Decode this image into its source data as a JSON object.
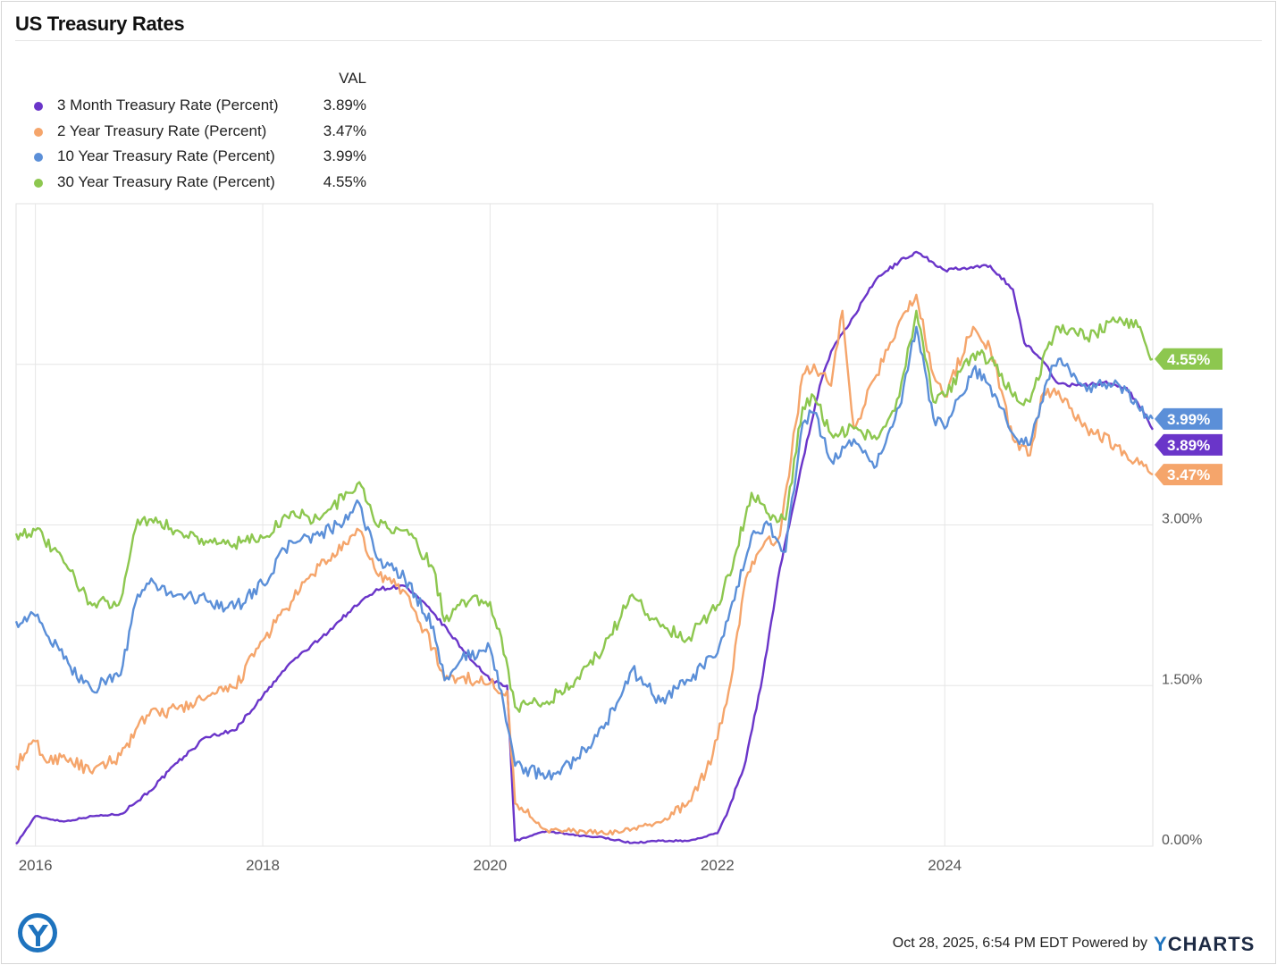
{
  "title": "US Treasury Rates",
  "legend": {
    "header": "VAL",
    "items": [
      {
        "label": "3 Month Treasury Rate (Percent)",
        "value": "3.89%",
        "color": "#6a35c9"
      },
      {
        "label": "2 Year Treasury Rate (Percent)",
        "value": "3.47%",
        "color": "#f5a56b"
      },
      {
        "label": "10 Year Treasury Rate (Percent)",
        "value": "3.99%",
        "color": "#5b8fd8"
      },
      {
        "label": "30 Year Treasury Rate (Percent)",
        "value": "4.55%",
        "color": "#8dc74f"
      }
    ]
  },
  "footer": {
    "timestamp": "Oct 28, 2025, 6:54 PM EDT",
    "powered_by": "Powered by",
    "brand_y": "Y",
    "brand_rest": "CHARTS"
  },
  "chart_data": {
    "type": "line",
    "title": "US Treasury Rates",
    "xlabel": "",
    "ylabel": "",
    "xlim": [
      2015.83,
      2025.83
    ],
    "ylim": [
      0,
      6
    ],
    "x_ticks": [
      2016,
      2018,
      2020,
      2022,
      2024
    ],
    "x_tick_labels": [
      "2016",
      "2018",
      "2020",
      "2022",
      "2024"
    ],
    "y_ticks": [
      0,
      1.5,
      3.0,
      4.5
    ],
    "y_tick_labels": [
      "0.00%",
      "1.50%",
      "3.00%",
      ""
    ],
    "grid": true,
    "series": [
      {
        "name": "3 Month Treasury Rate (Percent)",
        "color": "#6a35c9",
        "end_label": "3.89%",
        "points": [
          [
            2015.83,
            0.02
          ],
          [
            2016.0,
            0.28
          ],
          [
            2016.25,
            0.23
          ],
          [
            2016.5,
            0.28
          ],
          [
            2016.75,
            0.3
          ],
          [
            2017.0,
            0.51
          ],
          [
            2017.25,
            0.78
          ],
          [
            2017.5,
            1.02
          ],
          [
            2017.75,
            1.08
          ],
          [
            2018.0,
            1.4
          ],
          [
            2018.25,
            1.72
          ],
          [
            2018.5,
            1.93
          ],
          [
            2018.75,
            2.18
          ],
          [
            2019.0,
            2.4
          ],
          [
            2019.25,
            2.43
          ],
          [
            2019.5,
            2.18
          ],
          [
            2019.75,
            1.85
          ],
          [
            2020.0,
            1.55
          ],
          [
            2020.15,
            1.5
          ],
          [
            2020.22,
            0.05
          ],
          [
            2020.5,
            0.14
          ],
          [
            2020.75,
            0.1
          ],
          [
            2021.0,
            0.08
          ],
          [
            2021.25,
            0.03
          ],
          [
            2021.5,
            0.05
          ],
          [
            2021.75,
            0.05
          ],
          [
            2022.0,
            0.12
          ],
          [
            2022.1,
            0.35
          ],
          [
            2022.25,
            0.8
          ],
          [
            2022.4,
            1.6
          ],
          [
            2022.55,
            2.6
          ],
          [
            2022.75,
            3.6
          ],
          [
            2022.9,
            4.3
          ],
          [
            2023.0,
            4.62
          ],
          [
            2023.2,
            4.95
          ],
          [
            2023.4,
            5.3
          ],
          [
            2023.6,
            5.46
          ],
          [
            2023.75,
            5.55
          ],
          [
            2023.9,
            5.45
          ],
          [
            2024.0,
            5.38
          ],
          [
            2024.25,
            5.4
          ],
          [
            2024.4,
            5.42
          ],
          [
            2024.6,
            5.2
          ],
          [
            2024.7,
            4.7
          ],
          [
            2024.85,
            4.55
          ],
          [
            2025.0,
            4.32
          ],
          [
            2025.2,
            4.3
          ],
          [
            2025.4,
            4.33
          ],
          [
            2025.6,
            4.28
          ],
          [
            2025.75,
            4.05
          ],
          [
            2025.83,
            3.89
          ]
        ]
      },
      {
        "name": "2 Year Treasury Rate (Percent)",
        "color": "#f5a56b",
        "end_label": "3.47%",
        "points": [
          [
            2015.83,
            0.75
          ],
          [
            2016.0,
            0.98
          ],
          [
            2016.1,
            0.78
          ],
          [
            2016.25,
            0.85
          ],
          [
            2016.5,
            0.68
          ],
          [
            2016.75,
            0.85
          ],
          [
            2016.9,
            1.12
          ],
          [
            2017.0,
            1.22
          ],
          [
            2017.25,
            1.28
          ],
          [
            2017.5,
            1.38
          ],
          [
            2017.75,
            1.48
          ],
          [
            2018.0,
            1.92
          ],
          [
            2018.25,
            2.28
          ],
          [
            2018.5,
            2.62
          ],
          [
            2018.75,
            2.82
          ],
          [
            2018.85,
            2.95
          ],
          [
            2019.0,
            2.55
          ],
          [
            2019.25,
            2.38
          ],
          [
            2019.5,
            1.85
          ],
          [
            2019.6,
            1.55
          ],
          [
            2019.75,
            1.58
          ],
          [
            2020.0,
            1.52
          ],
          [
            2020.15,
            1.45
          ],
          [
            2020.22,
            0.4
          ],
          [
            2020.5,
            0.15
          ],
          [
            2020.75,
            0.14
          ],
          [
            2021.0,
            0.12
          ],
          [
            2021.25,
            0.16
          ],
          [
            2021.5,
            0.22
          ],
          [
            2021.75,
            0.42
          ],
          [
            2021.9,
            0.7
          ],
          [
            2022.0,
            1.0
          ],
          [
            2022.1,
            1.45
          ],
          [
            2022.25,
            2.5
          ],
          [
            2022.4,
            2.8
          ],
          [
            2022.55,
            2.9
          ],
          [
            2022.75,
            4.4
          ],
          [
            2022.85,
            4.5
          ],
          [
            2023.0,
            4.3
          ],
          [
            2023.1,
            5.0
          ],
          [
            2023.2,
            3.9
          ],
          [
            2023.4,
            4.4
          ],
          [
            2023.6,
            4.9
          ],
          [
            2023.75,
            5.15
          ],
          [
            2023.9,
            4.4
          ],
          [
            2024.0,
            4.2
          ],
          [
            2024.25,
            4.85
          ],
          [
            2024.4,
            4.65
          ],
          [
            2024.6,
            3.8
          ],
          [
            2024.75,
            3.65
          ],
          [
            2024.85,
            4.2
          ],
          [
            2025.0,
            4.25
          ],
          [
            2025.25,
            3.9
          ],
          [
            2025.5,
            3.75
          ],
          [
            2025.75,
            3.55
          ],
          [
            2025.83,
            3.47
          ]
        ]
      },
      {
        "name": "10 Year Treasury Rate (Percent)",
        "color": "#5b8fd8",
        "end_label": "3.99%",
        "points": [
          [
            2015.83,
            2.1
          ],
          [
            2016.0,
            2.15
          ],
          [
            2016.25,
            1.75
          ],
          [
            2016.5,
            1.45
          ],
          [
            2016.6,
            1.55
          ],
          [
            2016.75,
            1.6
          ],
          [
            2016.9,
            2.35
          ],
          [
            2017.0,
            2.45
          ],
          [
            2017.25,
            2.35
          ],
          [
            2017.5,
            2.3
          ],
          [
            2017.75,
            2.22
          ],
          [
            2018.0,
            2.45
          ],
          [
            2018.25,
            2.85
          ],
          [
            2018.5,
            2.9
          ],
          [
            2018.75,
            3.05
          ],
          [
            2018.85,
            3.2
          ],
          [
            2019.0,
            2.7
          ],
          [
            2019.25,
            2.5
          ],
          [
            2019.5,
            2.05
          ],
          [
            2019.6,
            1.55
          ],
          [
            2019.75,
            1.75
          ],
          [
            2020.0,
            1.85
          ],
          [
            2020.1,
            1.45
          ],
          [
            2020.22,
            0.75
          ],
          [
            2020.5,
            0.65
          ],
          [
            2020.75,
            0.8
          ],
          [
            2021.0,
            1.1
          ],
          [
            2021.25,
            1.65
          ],
          [
            2021.5,
            1.35
          ],
          [
            2021.75,
            1.55
          ],
          [
            2022.0,
            1.8
          ],
          [
            2022.15,
            2.3
          ],
          [
            2022.3,
            2.9
          ],
          [
            2022.45,
            3.0
          ],
          [
            2022.6,
            2.75
          ],
          [
            2022.75,
            3.95
          ],
          [
            2022.85,
            4.05
          ],
          [
            2023.0,
            3.6
          ],
          [
            2023.2,
            3.8
          ],
          [
            2023.4,
            3.55
          ],
          [
            2023.6,
            4.1
          ],
          [
            2023.75,
            4.85
          ],
          [
            2023.9,
            4.0
          ],
          [
            2024.0,
            3.9
          ],
          [
            2024.25,
            4.45
          ],
          [
            2024.4,
            4.3
          ],
          [
            2024.6,
            3.85
          ],
          [
            2024.75,
            3.75
          ],
          [
            2024.9,
            4.35
          ],
          [
            2025.0,
            4.55
          ],
          [
            2025.25,
            4.25
          ],
          [
            2025.5,
            4.35
          ],
          [
            2025.7,
            4.1
          ],
          [
            2025.83,
            3.99
          ]
        ]
      },
      {
        "name": "30 Year Treasury Rate (Percent)",
        "color": "#8dc74f",
        "end_label": "4.55%",
        "points": [
          [
            2015.83,
            2.92
          ],
          [
            2016.0,
            2.95
          ],
          [
            2016.25,
            2.65
          ],
          [
            2016.5,
            2.25
          ],
          [
            2016.75,
            2.3
          ],
          [
            2016.9,
            3.05
          ],
          [
            2017.0,
            3.05
          ],
          [
            2017.25,
            2.95
          ],
          [
            2017.5,
            2.85
          ],
          [
            2017.75,
            2.82
          ],
          [
            2018.0,
            2.88
          ],
          [
            2018.25,
            3.12
          ],
          [
            2018.5,
            3.05
          ],
          [
            2018.75,
            3.3
          ],
          [
            2018.85,
            3.4
          ],
          [
            2019.0,
            3.0
          ],
          [
            2019.25,
            2.95
          ],
          [
            2019.5,
            2.6
          ],
          [
            2019.6,
            2.1
          ],
          [
            2019.75,
            2.3
          ],
          [
            2020.0,
            2.28
          ],
          [
            2020.1,
            1.95
          ],
          [
            2020.22,
            1.3
          ],
          [
            2020.5,
            1.35
          ],
          [
            2020.75,
            1.55
          ],
          [
            2021.0,
            1.85
          ],
          [
            2021.25,
            2.35
          ],
          [
            2021.5,
            2.05
          ],
          [
            2021.75,
            1.95
          ],
          [
            2022.0,
            2.25
          ],
          [
            2022.15,
            2.7
          ],
          [
            2022.3,
            3.3
          ],
          [
            2022.45,
            3.1
          ],
          [
            2022.6,
            3.05
          ],
          [
            2022.75,
            4.1
          ],
          [
            2022.85,
            4.2
          ],
          [
            2023.0,
            3.85
          ],
          [
            2023.2,
            3.9
          ],
          [
            2023.4,
            3.8
          ],
          [
            2023.6,
            4.2
          ],
          [
            2023.75,
            5.0
          ],
          [
            2023.9,
            4.15
          ],
          [
            2024.0,
            4.2
          ],
          [
            2024.25,
            4.6
          ],
          [
            2024.4,
            4.55
          ],
          [
            2024.6,
            4.2
          ],
          [
            2024.75,
            4.15
          ],
          [
            2024.9,
            4.65
          ],
          [
            2025.0,
            4.85
          ],
          [
            2025.25,
            4.75
          ],
          [
            2025.5,
            4.9
          ],
          [
            2025.7,
            4.85
          ],
          [
            2025.83,
            4.55
          ]
        ]
      }
    ]
  }
}
